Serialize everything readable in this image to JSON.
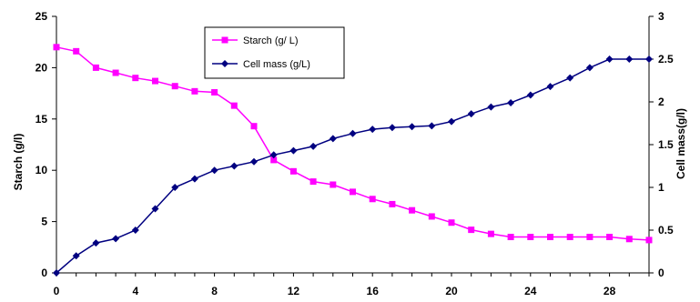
{
  "chart_data": {
    "type": "line",
    "xlabel": "",
    "y1label": "Starch (g/l)",
    "y2label": "Cell mass(g/l)",
    "xlim": [
      0,
      30
    ],
    "y1lim": [
      0,
      25
    ],
    "y2lim": [
      0,
      3
    ],
    "x_ticks": [
      0,
      4,
      8,
      12,
      16,
      20,
      24,
      28
    ],
    "y1_ticks": [
      0,
      5,
      10,
      15,
      20,
      25
    ],
    "y2_ticks": [
      0,
      0.5,
      1,
      1.5,
      2,
      2.5,
      3
    ],
    "grid": false,
    "legend_position": "top-center",
    "x": [
      0,
      1,
      2,
      3,
      4,
      5,
      6,
      7,
      8,
      9,
      10,
      11,
      12,
      13,
      14,
      15,
      16,
      17,
      18,
      19,
      20,
      21,
      22,
      23,
      24,
      25,
      26,
      27,
      28,
      29,
      30
    ],
    "series": [
      {
        "name": "Starch (g/ L)",
        "axis": "left",
        "color": "#ff00ff",
        "marker": "square",
        "values": [
          22.0,
          21.6,
          20.0,
          19.5,
          19.0,
          18.7,
          18.2,
          17.7,
          17.6,
          16.3,
          14.3,
          11.0,
          9.9,
          8.9,
          8.6,
          7.9,
          7.2,
          6.7,
          6.1,
          5.5,
          4.9,
          4.2,
          3.8,
          3.5,
          3.5,
          3.5,
          3.5,
          3.5,
          3.5,
          3.3,
          3.2
        ]
      },
      {
        "name": "Cell mass (g/L)",
        "axis": "right",
        "color": "#000080",
        "marker": "diamond",
        "values": [
          0.0,
          0.2,
          0.35,
          0.4,
          0.5,
          0.75,
          1.0,
          1.1,
          1.2,
          1.25,
          1.3,
          1.38,
          1.43,
          1.48,
          1.57,
          1.63,
          1.68,
          1.7,
          1.71,
          1.72,
          1.77,
          1.86,
          1.94,
          1.99,
          2.08,
          2.18,
          2.28,
          2.4,
          2.5,
          2.5,
          2.5
        ]
      }
    ]
  }
}
